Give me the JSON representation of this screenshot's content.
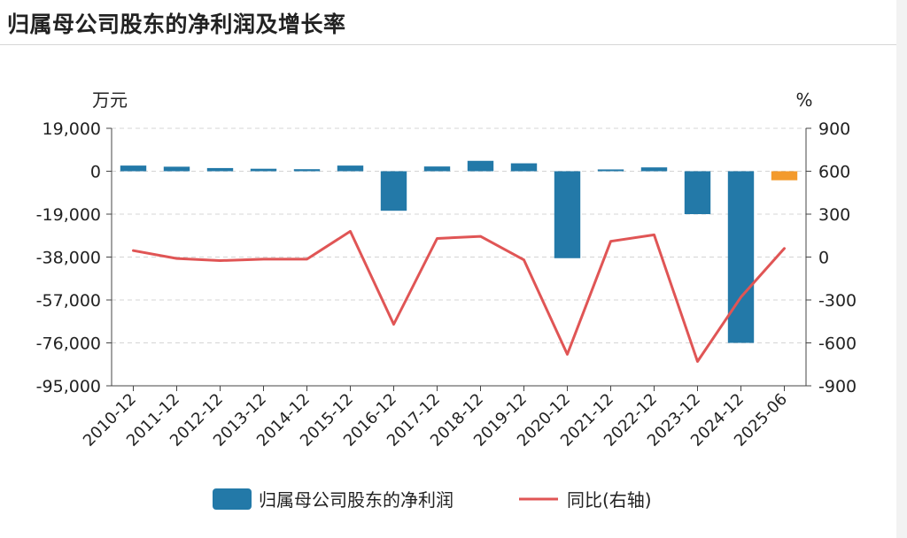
{
  "page": {
    "title": "归属母公司股东的净利润及增长率"
  },
  "chart_data": {
    "type": "bar",
    "categories": [
      "2010-12",
      "2011-12",
      "2012-12",
      "2013-12",
      "2014-12",
      "2015-12",
      "2016-12",
      "2017-12",
      "2018-12",
      "2019-12",
      "2020-12",
      "2021-12",
      "2022-12",
      "2023-12",
      "2024-12",
      "2025-06"
    ],
    "series": [
      {
        "name": "归属母公司股东的净利润",
        "type": "bar",
        "axis": "left",
        "values": [
          2500,
          2000,
          1400,
          1100,
          900,
          2500,
          -17500,
          2100,
          4600,
          3500,
          -38500,
          800,
          1700,
          -19000,
          -76000,
          -4000
        ],
        "color": "#2379a8",
        "highlight_color": "#f39a2c",
        "highlight_last": true
      },
      {
        "name": "同比(右轴)",
        "type": "line",
        "axis": "right",
        "values": [
          45,
          -10,
          -25,
          -15,
          -15,
          180,
          -470,
          130,
          145,
          -20,
          -680,
          110,
          155,
          -730,
          -280,
          60
        ],
        "color": "#e05555"
      }
    ],
    "left_axis": {
      "unit": "万元",
      "ylim": [
        -95000,
        19000
      ],
      "ticks": [
        19000,
        0,
        -19000,
        -38000,
        -57000,
        -76000,
        -95000
      ],
      "tick_labels": [
        "19,000",
        "0",
        "-19,000",
        "-38,000",
        "-57,000",
        "-76,000",
        "-95,000"
      ]
    },
    "right_axis": {
      "unit": "%",
      "ylim": [
        -900,
        900
      ],
      "ticks": [
        900,
        600,
        300,
        0,
        -300,
        -600,
        -900
      ],
      "tick_labels": [
        "900",
        "600",
        "300",
        "0",
        "-300",
        "-600",
        "-900"
      ]
    },
    "legend_position": "bottom"
  }
}
